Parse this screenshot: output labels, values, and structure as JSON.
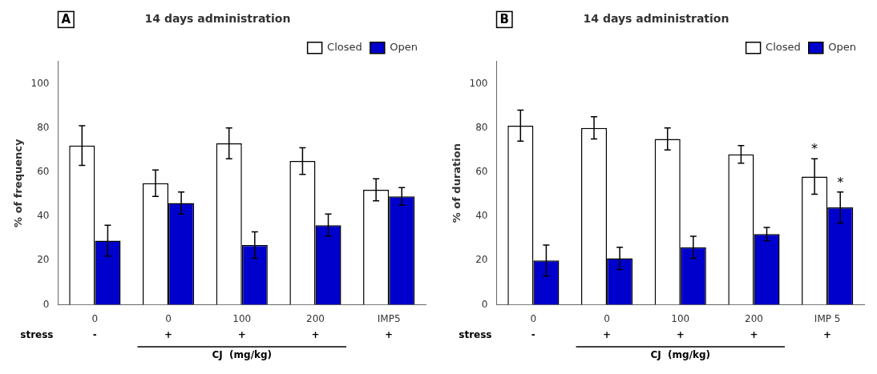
{
  "chart_data": [
    {
      "type": "bar",
      "title": "14 days administration",
      "panel_label": "A",
      "ylabel": "% of frequency",
      "xlabel": "CJ  (mg/kg)",
      "xlabel_under": [
        false,
        true,
        true,
        true,
        false
      ],
      "row_label": "stress",
      "row_values": [
        "-",
        "+",
        "+",
        "+",
        "+"
      ],
      "categories": [
        "0",
        "0",
        "100",
        "200",
        "IMP5"
      ],
      "series": [
        {
          "name": "Closed",
          "color": "white",
          "values": [
            72,
            55,
            73,
            65,
            52
          ],
          "errors": [
            9,
            6,
            7,
            6,
            5
          ],
          "annotations": [
            null,
            null,
            null,
            null,
            null
          ]
        },
        {
          "name": "Open",
          "color": "#0000cc",
          "values": [
            29,
            46,
            27,
            36,
            49
          ],
          "errors": [
            7,
            5,
            6,
            5,
            4
          ],
          "annotations": [
            null,
            null,
            null,
            null,
            null
          ]
        }
      ],
      "ylim": [
        0,
        110
      ],
      "yticks": [
        0,
        20,
        40,
        60,
        80,
        100
      ],
      "grid": false,
      "legend": "upper right"
    },
    {
      "type": "bar",
      "title": "14 days administration",
      "panel_label": "B",
      "ylabel": "% of duration",
      "xlabel": "CJ  (mg/kg)",
      "xlabel_under": [
        false,
        true,
        true,
        true,
        false
      ],
      "row_label": "stress",
      "row_values": [
        "-",
        "+",
        "+",
        "+",
        "+"
      ],
      "categories": [
        "0",
        "0",
        "100",
        "200",
        "IMP 5"
      ],
      "series": [
        {
          "name": "Closed",
          "color": "white",
          "values": [
            81,
            80,
            75,
            68,
            58
          ],
          "errors": [
            7,
            5,
            5,
            4,
            8
          ],
          "annotations": [
            null,
            null,
            null,
            null,
            "*"
          ]
        },
        {
          "name": "Open",
          "color": "#0000cc",
          "values": [
            20,
            21,
            26,
            32,
            44
          ],
          "errors": [
            7,
            5,
            5,
            3,
            7
          ],
          "annotations": [
            null,
            null,
            null,
            null,
            "*"
          ]
        }
      ],
      "ylim": [
        0,
        110
      ],
      "yticks": [
        0,
        20,
        40,
        60,
        80,
        100
      ],
      "grid": false,
      "legend": "upper right"
    }
  ]
}
